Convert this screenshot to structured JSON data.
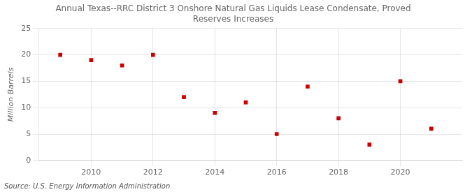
{
  "chart_data": {
    "type": "scatter",
    "title": "Annual Texas--RRC District 3 Onshore Natural Gas Liquids Lease Condensate, Proved\nReserves Increases",
    "ylabel": "Million Barrels",
    "annotation": "Source: U.S. Energy Information Administration",
    "x": [
      2009,
      2010,
      2011,
      2012,
      2013,
      2014,
      2015,
      2016,
      2017,
      2018,
      2019,
      2020,
      2021
    ],
    "values": [
      20.0,
      19.0,
      18.0,
      20.0,
      12.0,
      9.0,
      11.0,
      5.0,
      14.0,
      8.0,
      3.0,
      15.0,
      6.0
    ],
    "color": "#CC0000",
    "marker": "square",
    "xlim": [
      2008.3,
      2022.0
    ],
    "ylim": [
      0,
      25
    ],
    "xticks": [
      2010,
      2012,
      2014,
      2016,
      2018,
      2020
    ],
    "yticks": [
      0,
      5,
      10,
      15,
      20,
      25
    ],
    "grid": true
  }
}
